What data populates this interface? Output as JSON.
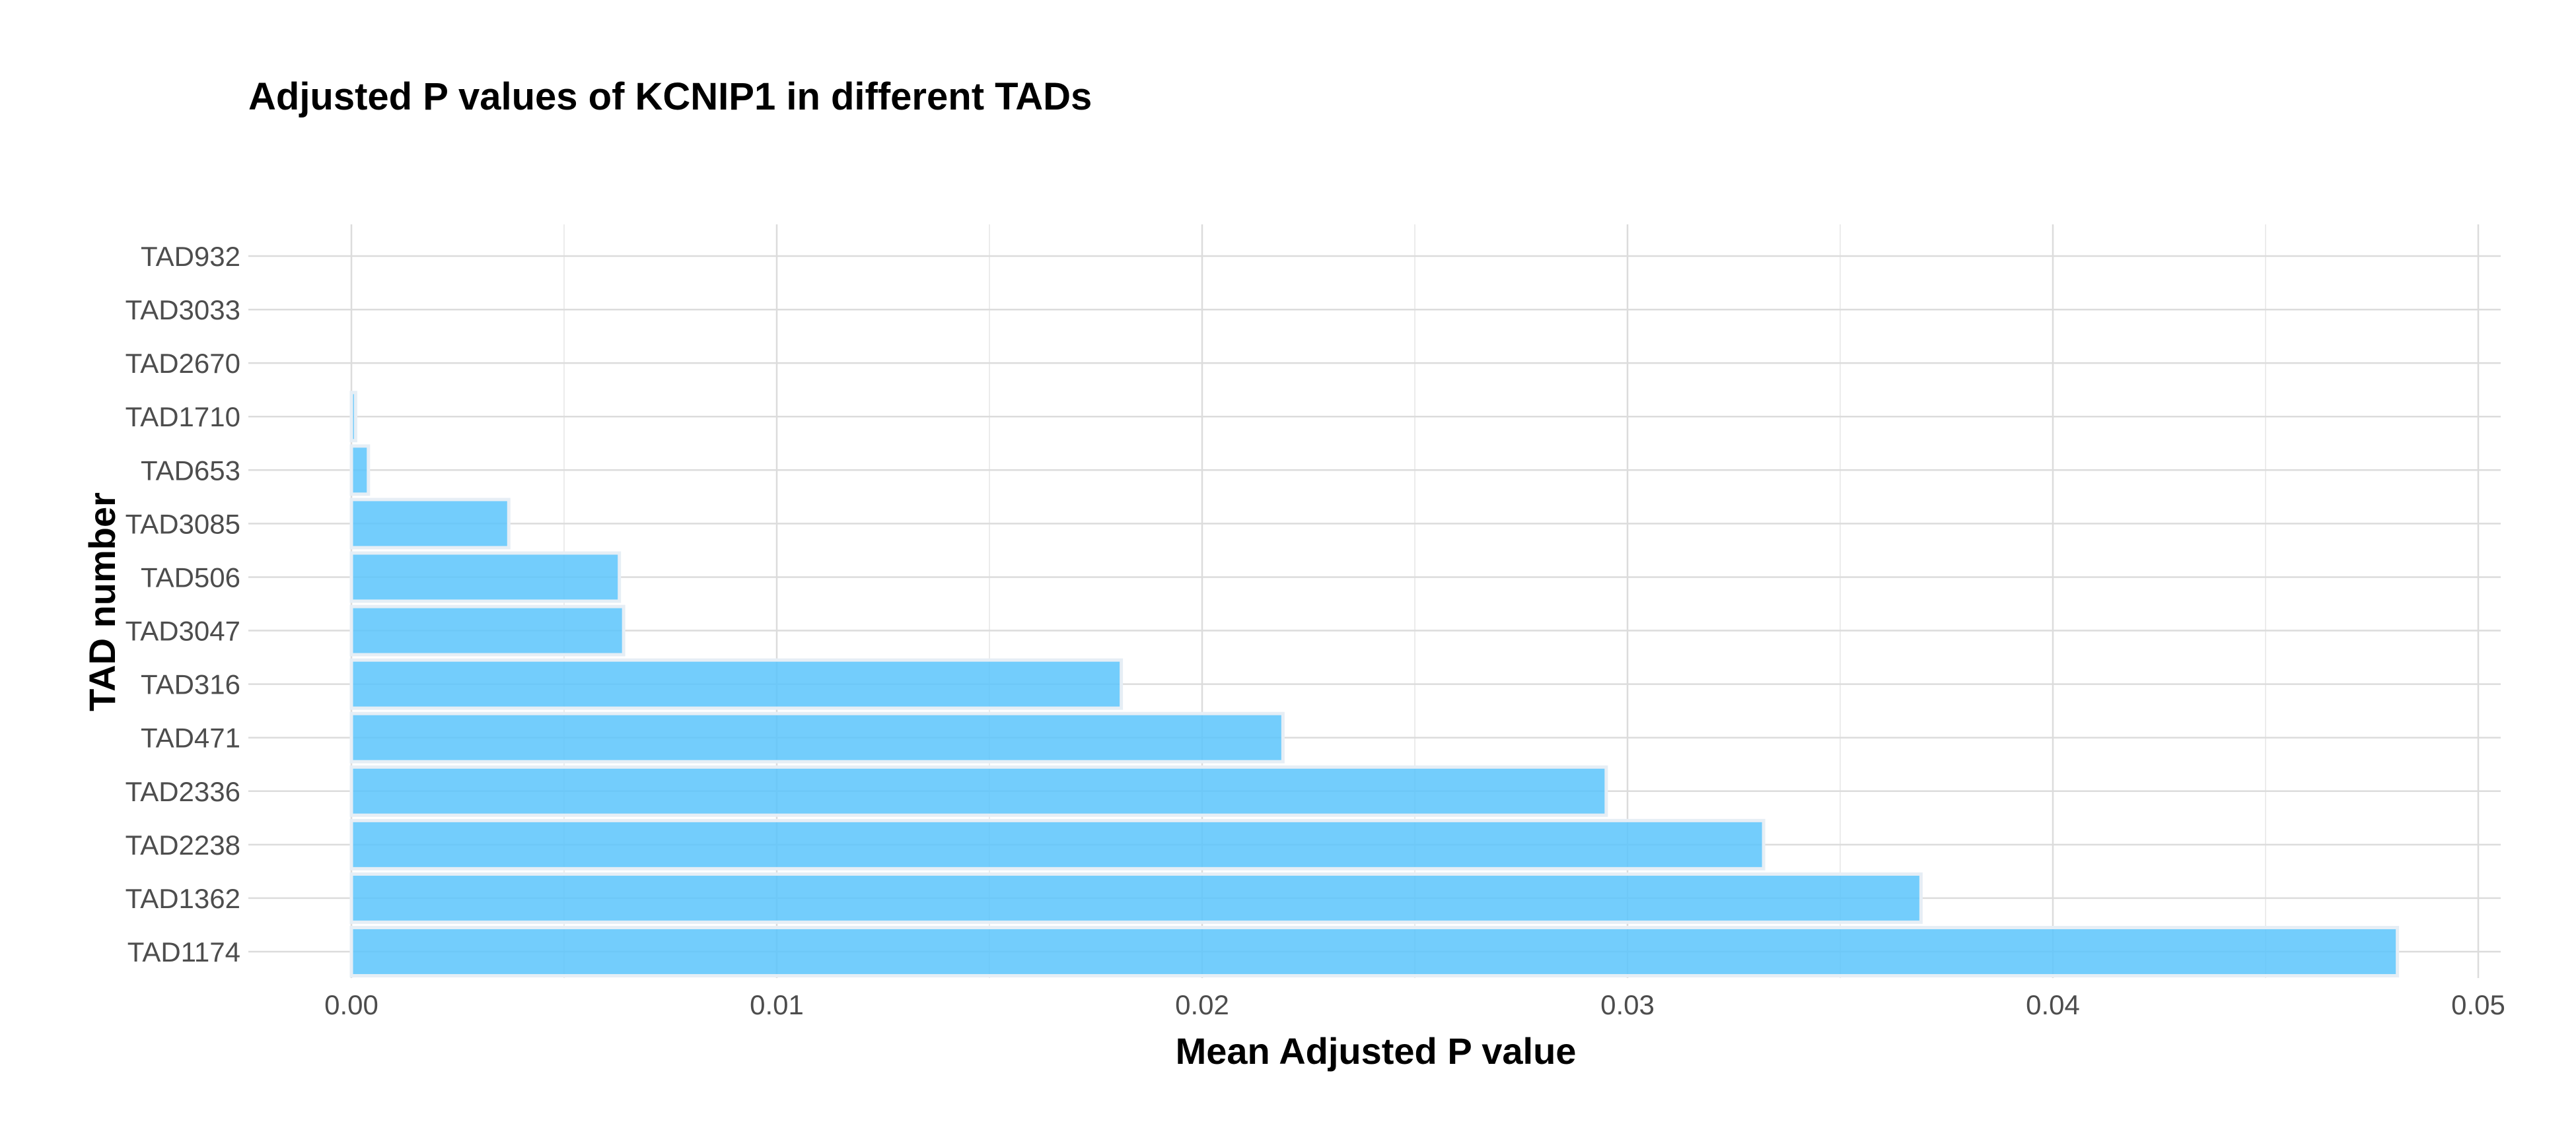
{
  "chart_data": {
    "type": "bar",
    "orientation": "horizontal",
    "title": "Adjusted P values of KCNIP1 in different TADs",
    "xlabel": "Mean Adjusted P value",
    "ylabel": "TAD number",
    "categories": [
      "TAD932",
      "TAD3033",
      "TAD2670",
      "TAD1710",
      "TAD653",
      "TAD3085",
      "TAD506",
      "TAD3047",
      "TAD316",
      "TAD471",
      "TAD2336",
      "TAD2238",
      "TAD1362",
      "TAD1174"
    ],
    "values": [
      0.0,
      0.0,
      0.0,
      0.0001,
      0.0004,
      0.0037,
      0.0063,
      0.0064,
      0.0181,
      0.0219,
      0.0295,
      0.0332,
      0.0369,
      0.0481
    ],
    "xlim": [
      0,
      0.05
    ],
    "xticks": [
      0.0,
      0.01,
      0.02,
      0.03,
      0.04,
      0.05
    ],
    "xtick_labels": [
      "0.00",
      "0.01",
      "0.02",
      "0.03",
      "0.04",
      "0.05"
    ],
    "grid": true,
    "colors": {
      "bar": "#5bc4fc",
      "bar_outline": "#e6eef5"
    }
  }
}
